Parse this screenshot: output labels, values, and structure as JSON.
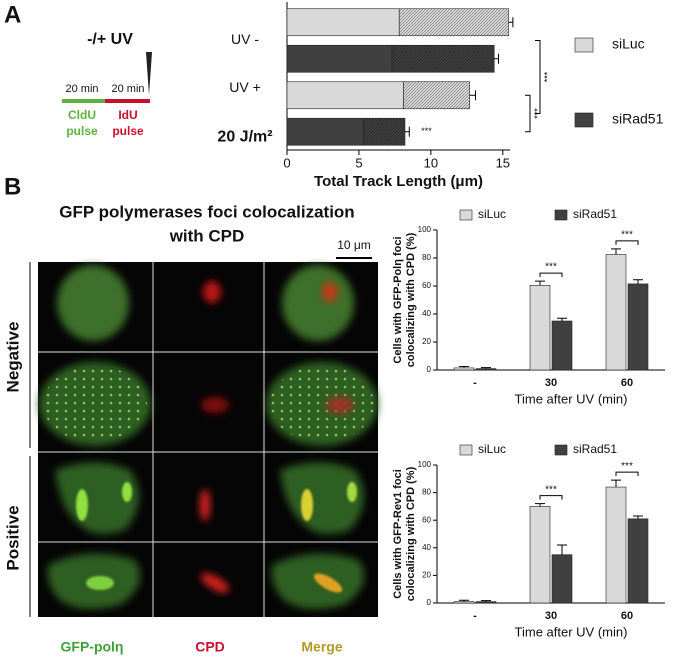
{
  "panel_labels": [
    "A",
    "B"
  ],
  "diagram": {
    "title": "-/+ UV",
    "durations": [
      "20 min",
      "20 min"
    ],
    "pulses": [
      {
        "name": "CldU",
        "label": "pulse"
      },
      {
        "name": "IdU",
        "label": "pulse"
      }
    ]
  },
  "panel_b": {
    "title": [
      "GFP polymerases foci colocalization",
      "with CPD"
    ],
    "scale_bar": "10 μm",
    "rows": [
      "Negative",
      "Positive"
    ],
    "columns": [
      "GFP-polη",
      "CPD",
      "Merge"
    ]
  },
  "chart_data": [
    {
      "type": "hbar-stacked",
      "categories": [
        "UV -",
        "UV +"
      ],
      "category_notes": [
        null,
        "20 J/m²"
      ],
      "xlabel": "Total Track Length (μm)",
      "xlim": [
        0,
        15.5
      ],
      "xticks": [
        0,
        5,
        10,
        15
      ],
      "series": [
        {
          "name": "siLuc",
          "color": "#d9d9d9",
          "values": [
            7.8,
            8.1
          ],
          "idu_values": [
            7.6,
            4.6
          ],
          "errors": [
            0.3,
            0.4
          ]
        },
        {
          "name": "siRad51",
          "color": "#404040",
          "values": [
            7.3,
            5.3
          ],
          "idu_values": [
            7.1,
            2.9
          ],
          "errors": [
            0.3,
            0.3
          ]
        }
      ],
      "annotations": [
        "***",
        "***",
        "***"
      ],
      "legend_position": "right"
    },
    {
      "type": "grouped-bar",
      "categories": [
        "-",
        "30",
        "60"
      ],
      "xlabel": "Time after UV (min)",
      "ylabel": [
        "Cells with GFP-Polη foci",
        "colocalizing with CPD (%)"
      ],
      "ylim": [
        0,
        100
      ],
      "yticks": [
        0,
        20,
        40,
        60,
        80,
        100
      ],
      "series": [
        {
          "name": "siLuc",
          "color": "#d9d9d9",
          "values": [
            1.5,
            60.5,
            82.5
          ],
          "errors": [
            1,
            3,
            4
          ]
        },
        {
          "name": "siRad51",
          "color": "#404040",
          "values": [
            1,
            35,
            61.5
          ],
          "errors": [
            0.7,
            2,
            3
          ]
        }
      ],
      "annotations": [
        "***",
        "***"
      ],
      "legend_position": "top"
    },
    {
      "type": "grouped-bar",
      "categories": [
        "-",
        "30",
        "60"
      ],
      "xlabel": "Time after UV (min)",
      "ylabel": [
        "Cells with GFP-Rev1 foci",
        "colocalizing with CPD (%)"
      ],
      "ylim": [
        0,
        100
      ],
      "yticks": [
        0,
        20,
        40,
        60,
        80,
        100
      ],
      "series": [
        {
          "name": "siLuc",
          "color": "#d9d9d9",
          "values": [
            1,
            70,
            84
          ],
          "errors": [
            1,
            2,
            5
          ]
        },
        {
          "name": "siRad51",
          "color": "#404040",
          "values": [
            1,
            35,
            61
          ],
          "errors": [
            0.7,
            7,
            2
          ]
        }
      ],
      "annotations": [
        "***",
        "***"
      ],
      "legend_position": "top"
    }
  ]
}
